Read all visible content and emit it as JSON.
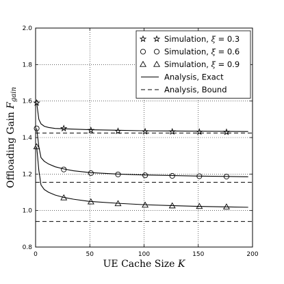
{
  "chart_data": {
    "type": "line",
    "xlabel": "UE Cache Size",
    "xlabel_symbol": "K",
    "ylabel": "Offloading Gain",
    "ylabel_symbol": "F",
    "ylabel_subscript": "gain",
    "xlim": [
      0,
      200
    ],
    "ylim": [
      0.8,
      2.0
    ],
    "xticks": [
      0,
      50,
      100,
      150,
      200
    ],
    "yticks": [
      0.8,
      1.0,
      1.2,
      1.4,
      1.6,
      1.8,
      2.0
    ],
    "xtick_labels": [
      "0",
      "50",
      "100",
      "150",
      "200"
    ],
    "ytick_labels": [
      "0.8",
      "1.0",
      "1.2",
      "1.4",
      "1.6",
      "1.8",
      "2.0"
    ],
    "grid": true,
    "legend_position": "top-right",
    "legend": [
      {
        "marker": "star",
        "label": "Simulation, ",
        "symbol": "ξ",
        "suffix": " = 0.3"
      },
      {
        "marker": "circle",
        "label": "Simulation, ",
        "symbol": "ξ",
        "suffix": " = 0.6"
      },
      {
        "marker": "triangle",
        "label": "Simulation, ",
        "symbol": "ξ",
        "suffix": " = 0.9"
      },
      {
        "marker": "solid-line",
        "label": "Analysis, Exact"
      },
      {
        "marker": "dashed-line",
        "label": "Analysis, Bound"
      }
    ],
    "series": [
      {
        "xi": 0.3,
        "simulation": {
          "marker": "star",
          "x": [
            1,
            26,
            51,
            76,
            101,
            126,
            151,
            176
          ],
          "y": [
            1.59,
            1.45,
            1.44,
            1.435,
            1.433,
            1.432,
            1.431,
            1.43
          ]
        },
        "exact": {
          "x": [
            1,
            3,
            5,
            8,
            12,
            18,
            26,
            35,
            50,
            75,
            100,
            125,
            150,
            175,
            196
          ],
          "y": [
            1.59,
            1.5,
            1.475,
            1.462,
            1.455,
            1.45,
            1.448,
            1.446,
            1.443,
            1.44,
            1.437,
            1.436,
            1.435,
            1.434,
            1.433
          ]
        },
        "bound": 1.425
      },
      {
        "xi": 0.6,
        "simulation": {
          "marker": "circle",
          "x": [
            1,
            26,
            51,
            76,
            101,
            126,
            151,
            176
          ],
          "y": [
            1.45,
            1.225,
            1.205,
            1.198,
            1.193,
            1.19,
            1.188,
            1.186
          ]
        },
        "exact": {
          "x": [
            1,
            3,
            5,
            8,
            12,
            18,
            26,
            35,
            50,
            75,
            100,
            125,
            150,
            175,
            196
          ],
          "y": [
            1.45,
            1.35,
            1.29,
            1.27,
            1.255,
            1.24,
            1.228,
            1.218,
            1.208,
            1.2,
            1.195,
            1.192,
            1.189,
            1.187,
            1.185
          ]
        },
        "bound": 1.155
      },
      {
        "xi": 0.9,
        "simulation": {
          "marker": "triangle",
          "x": [
            1,
            26,
            51,
            76,
            101,
            126,
            151,
            176
          ],
          "y": [
            1.35,
            1.07,
            1.048,
            1.038,
            1.03,
            1.026,
            1.023,
            1.02
          ]
        },
        "exact": {
          "x": [
            1,
            3,
            5,
            8,
            12,
            18,
            26,
            35,
            50,
            75,
            100,
            125,
            150,
            175,
            196
          ],
          "y": [
            1.35,
            1.22,
            1.14,
            1.115,
            1.1,
            1.085,
            1.072,
            1.062,
            1.05,
            1.04,
            1.032,
            1.027,
            1.023,
            1.02,
            1.018
          ]
        },
        "bound": 0.94
      }
    ]
  }
}
